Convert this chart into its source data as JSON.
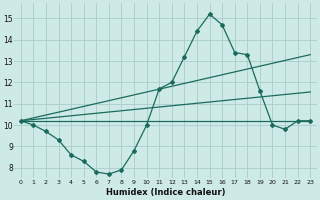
{
  "xlabel": "Humidex (Indice chaleur)",
  "bg_color": "#ceeae6",
  "grid_color": "#aaccca",
  "line_color": "#1a6b5e",
  "xlim": [
    -0.5,
    23.5
  ],
  "ylim": [
    7.5,
    15.7
  ],
  "xticks": [
    0,
    1,
    2,
    3,
    4,
    5,
    6,
    7,
    8,
    9,
    10,
    11,
    12,
    13,
    14,
    15,
    16,
    17,
    18,
    19,
    20,
    21,
    22,
    23
  ],
  "yticks": [
    8,
    9,
    10,
    11,
    12,
    13,
    14,
    15
  ],
  "series": [
    {
      "x": [
        0,
        1,
        2,
        3,
        4,
        5,
        6,
        7,
        8,
        9,
        10,
        11,
        12,
        13,
        14,
        15,
        16,
        17,
        18,
        19,
        20,
        21,
        22,
        23
      ],
      "y": [
        10.2,
        10.0,
        9.7,
        9.3,
        8.6,
        8.3,
        7.8,
        7.7,
        7.9,
        8.8,
        10.0,
        11.7,
        12.0,
        13.2,
        14.4,
        15.2,
        14.7,
        13.4,
        13.3,
        11.6,
        10.0,
        9.8,
        10.2,
        10.2
      ],
      "marker": "D",
      "markersize": 2.0,
      "linewidth": 0.9
    },
    {
      "x": [
        0,
        23
      ],
      "y": [
        10.2,
        13.3
      ],
      "marker": null,
      "linewidth": 0.9
    },
    {
      "x": [
        0,
        23
      ],
      "y": [
        10.2,
        11.55
      ],
      "marker": null,
      "linewidth": 0.9
    },
    {
      "x": [
        0,
        23
      ],
      "y": [
        10.2,
        10.2
      ],
      "marker": null,
      "linewidth": 0.9
    }
  ]
}
